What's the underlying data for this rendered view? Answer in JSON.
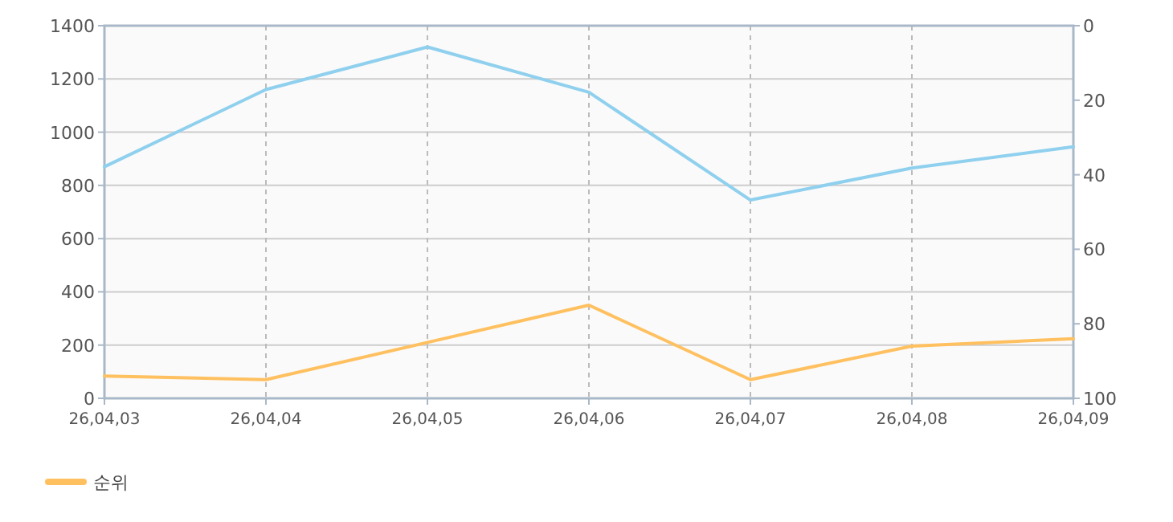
{
  "chart_data": {
    "type": "line",
    "categories": [
      "26,04,03",
      "26,04,04",
      "26,04,05",
      "26,04,06",
      "26,04,07",
      "26,04,08",
      "26,04,09"
    ],
    "series": [
      {
        "color": "#8fd0ee",
        "values": [
          870,
          1160,
          1320,
          1150,
          745,
          865,
          945
        ]
      },
      {
        "name": "순위",
        "color": "#ffc060",
        "axis": "y2",
        "values": [
          94,
          95,
          85,
          75,
          95,
          86,
          84
        ]
      }
    ],
    "ylim": [
      0,
      1400
    ],
    "yticks": [
      0,
      200,
      400,
      600,
      800,
      1000,
      1200,
      1400
    ],
    "y2lim": [
      100,
      0
    ],
    "y2ticks": [
      0,
      20,
      40,
      60,
      80,
      100
    ],
    "grid": true,
    "legend": "bottom left",
    "marker": "none",
    "line_style": "solid"
  }
}
